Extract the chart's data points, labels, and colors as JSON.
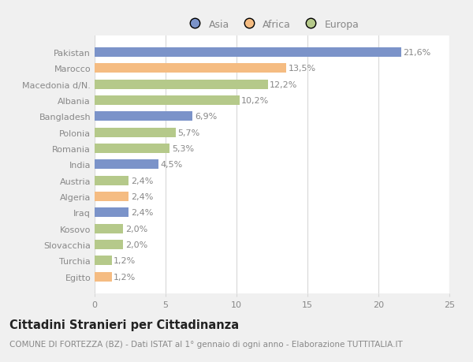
{
  "categories": [
    "Pakistan",
    "Marocco",
    "Macedonia d/N.",
    "Albania",
    "Bangladesh",
    "Polonia",
    "Romania",
    "India",
    "Austria",
    "Algeria",
    "Iraq",
    "Kosovo",
    "Slovacchia",
    "Turchia",
    "Egitto"
  ],
  "values": [
    21.6,
    13.5,
    12.2,
    10.2,
    6.9,
    5.7,
    5.3,
    4.5,
    2.4,
    2.4,
    2.4,
    2.0,
    2.0,
    1.2,
    1.2
  ],
  "labels": [
    "21,6%",
    "13,5%",
    "12,2%",
    "10,2%",
    "6,9%",
    "5,7%",
    "5,3%",
    "4,5%",
    "2,4%",
    "2,4%",
    "2,4%",
    "2,0%",
    "2,0%",
    "1,2%",
    "1,2%"
  ],
  "continents": [
    "Asia",
    "Africa",
    "Europa",
    "Europa",
    "Asia",
    "Europa",
    "Europa",
    "Asia",
    "Europa",
    "Africa",
    "Asia",
    "Europa",
    "Europa",
    "Europa",
    "Africa"
  ],
  "colors": {
    "Asia": "#7b93c9",
    "Africa": "#f5bc82",
    "Europa": "#b5c98a"
  },
  "title": "Cittadini Stranieri per Cittadinanza",
  "subtitle": "COMUNE DI FORTEZZA (BZ) - Dati ISTAT al 1° gennaio di ogni anno - Elaborazione TUTTITALIA.IT",
  "xlim": [
    0,
    25
  ],
  "xticks": [
    0,
    5,
    10,
    15,
    20,
    25
  ],
  "figure_bg": "#f0f0f0",
  "axes_bg": "#ffffff",
  "grid_color": "#d8d8d8",
  "text_color": "#888888",
  "label_color": "#888888",
  "title_color": "#222222",
  "subtitle_color": "#888888",
  "bar_height": 0.6,
  "label_fontsize": 8,
  "tick_fontsize": 8,
  "title_fontsize": 10.5,
  "subtitle_fontsize": 7.5,
  "legend_fontsize": 9
}
